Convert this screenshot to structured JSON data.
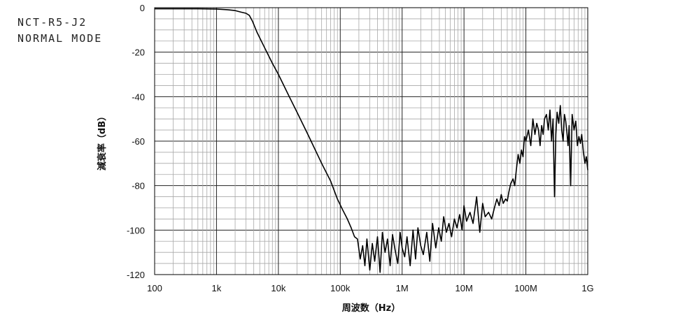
{
  "chart_data": {
    "type": "line",
    "annotation": [
      "NCT-R5-J2",
      "NORMAL MODE"
    ],
    "title": "",
    "xlabel": "周波数（Hz）",
    "ylabel": "減衰率（dB）",
    "xscale": "log",
    "xlim": [
      100,
      1000000000
    ],
    "ylim": [
      -120,
      0
    ],
    "grid": true,
    "x_ticks": [
      {
        "value": 100,
        "label": "100"
      },
      {
        "value": 1000,
        "label": "1k"
      },
      {
        "value": 10000,
        "label": "10k"
      },
      {
        "value": 100000,
        "label": "100k"
      },
      {
        "value": 1000000,
        "label": "1M"
      },
      {
        "value": 10000000,
        "label": "10M"
      },
      {
        "value": 100000000,
        "label": "100M"
      },
      {
        "value": 1000000000,
        "label": "1G"
      }
    ],
    "y_ticks": [
      {
        "value": 0,
        "label": "0"
      },
      {
        "value": -20,
        "label": "-20"
      },
      {
        "value": -40,
        "label": "-40"
      },
      {
        "value": -60,
        "label": "-60"
      },
      {
        "value": -80,
        "label": "-80"
      },
      {
        "value": -100,
        "label": "-100"
      },
      {
        "value": -120,
        "label": "-120"
      }
    ],
    "series": [
      {
        "color": "#000000",
        "x": [
          100,
          200,
          500,
          1000,
          1500,
          2000,
          2500,
          3000,
          3400,
          3800,
          4500,
          6000,
          8000,
          10000,
          15000,
          20000,
          30000,
          50000,
          70000,
          90000,
          110000,
          130000,
          150000,
          170000,
          190000,
          210000,
          230000,
          250000,
          270000,
          300000,
          330000,
          360000,
          400000,
          440000,
          480000,
          530000,
          580000,
          640000,
          700000,
          770000,
          850000,
          930000,
          1000000,
          1100000,
          1200000,
          1350000,
          1500000,
          1650000,
          1800000,
          2000000,
          2200000,
          2500000,
          2800000,
          3100000,
          3500000,
          3900000,
          4300000,
          4700000,
          5200000,
          5700000,
          6300000,
          7000000,
          7700000,
          8500000,
          9300000,
          10000000,
          11000000,
          12500000,
          14000000,
          16000000,
          18000000,
          20000000,
          22000000,
          25000000,
          28000000,
          31000000,
          34000000,
          37000000,
          40000000,
          43000000,
          47000000,
          50000000,
          53000000,
          57000000,
          62000000,
          66000000,
          70000000,
          75000000,
          80000000,
          85000000,
          90000000,
          95000000,
          100000000,
          110000000,
          120000000,
          130000000,
          140000000,
          150000000,
          160000000,
          170000000,
          180000000,
          190000000,
          200000000,
          215000000,
          230000000,
          245000000,
          260000000,
          275000000,
          290000000,
          305000000,
          320000000,
          340000000,
          360000000,
          380000000,
          400000000,
          420000000,
          440000000,
          460000000,
          480000000,
          500000000,
          530000000,
          560000000,
          600000000,
          640000000,
          680000000,
          720000000,
          760000000,
          800000000,
          850000000,
          900000000,
          950000000,
          1000000000
        ],
        "y": [
          -0.5,
          -0.5,
          -0.5,
          -0.6,
          -0.9,
          -1.3,
          -2.0,
          -2.5,
          -3.5,
          -6.0,
          -11.0,
          -18.0,
          -25.0,
          -30.0,
          -40.0,
          -47.0,
          -57.0,
          -70.0,
          -78.0,
          -86.0,
          -91.0,
          -95.0,
          -99.0,
          -103.0,
          -104.0,
          -113.0,
          -107.0,
          -116.0,
          -104.0,
          -118.0,
          -106.0,
          -114.0,
          -103.0,
          -119.0,
          -101.0,
          -110.0,
          -104.0,
          -116.0,
          -102.0,
          -109.0,
          -115.0,
          -101.0,
          -108.0,
          -112.0,
          -103.0,
          -116.0,
          -100.0,
          -113.0,
          -99.0,
          -107.0,
          -111.0,
          -101.0,
          -114.0,
          -97.0,
          -108.0,
          -99.0,
          -105.0,
          -94.0,
          -101.0,
          -97.0,
          -103.0,
          -95.0,
          -99.0,
          -93.0,
          -100.0,
          -89.0,
          -96.0,
          -92.0,
          -97.0,
          -85.0,
          -101.0,
          -88.0,
          -94.0,
          -92.0,
          -95.0,
          -90.0,
          -86.0,
          -89.0,
          -84.0,
          -88.0,
          -86.0,
          -87.0,
          -83.0,
          -79.0,
          -77.0,
          -80.0,
          -73.0,
          -66.0,
          -70.0,
          -64.0,
          -67.0,
          -58.0,
          -60.0,
          -55.0,
          -62.0,
          -50.0,
          -57.0,
          -52.0,
          -55.0,
          -62.0,
          -53.0,
          -57.0,
          -50.0,
          -48.0,
          -55.0,
          -46.0,
          -60.0,
          -50.0,
          -85.0,
          -57.0,
          -47.0,
          -52.0,
          -44.0,
          -55.0,
          -60.0,
          -48.0,
          -51.0,
          -56.0,
          -62.0,
          -53.0,
          -80.0,
          -48.0,
          -55.0,
          -51.0,
          -62.0,
          -58.0,
          -61.0,
          -57.0,
          -65.0,
          -70.0,
          -67.0,
          -73.0
        ]
      }
    ]
  }
}
